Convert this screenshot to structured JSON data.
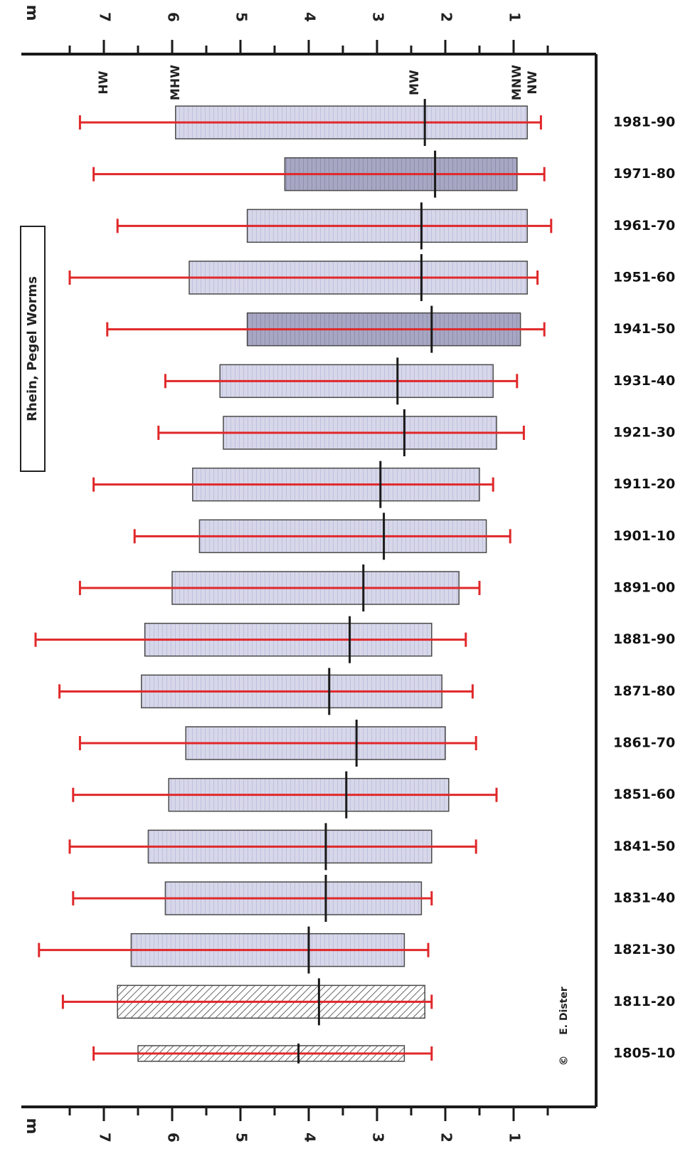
{
  "chart_data": {
    "type": "bar",
    "title": "Rhein, Pegel Worms",
    "unit": "m",
    "orientation": "horizontal range bars (rotated figure)",
    "axis": {
      "min": 0.5,
      "max": 7.7,
      "ticks": [
        1,
        2,
        3,
        4,
        5,
        6,
        7
      ],
      "label": "m"
    },
    "reference_lines": [
      {
        "label": "HW",
        "value": 7.0
      },
      {
        "label": "MHW",
        "value": 5.95
      },
      {
        "label": "MW",
        "value": 2.45
      },
      {
        "label": "MNW",
        "value": 0.95
      },
      {
        "label": "NW",
        "value": 0.72
      }
    ],
    "legend": [],
    "credit": "E. Dister",
    "copyright_symbol": "©",
    "series_fields": [
      "box_high",
      "box_low",
      "mean",
      "whisker_high",
      "whisker_low"
    ],
    "categories": [
      "1981-90",
      "1971-80",
      "1961-70",
      "1951-60",
      "1941-50",
      "1931-40",
      "1921-30",
      "1911-20",
      "1901-10",
      "1891-00",
      "1881-90",
      "1871-80",
      "1861-70",
      "1851-60",
      "1841-50",
      "1831-40",
      "1821-30",
      "1811-20",
      "1805-10"
    ],
    "periods": [
      {
        "label": "1981-90",
        "box_high": 5.95,
        "box_low": 0.8,
        "mean": 2.3,
        "whisker_high": 7.35,
        "whisker_low": 0.6
      },
      {
        "label": "1971-80",
        "box_high": 4.35,
        "box_low": 0.95,
        "mean": 2.15,
        "whisker_high": 7.15,
        "whisker_low": 0.55
      },
      {
        "label": "1961-70",
        "box_high": 4.9,
        "box_low": 0.8,
        "mean": 2.35,
        "whisker_high": 6.8,
        "whisker_low": 0.45
      },
      {
        "label": "1951-60",
        "box_high": 5.75,
        "box_low": 0.8,
        "mean": 2.35,
        "whisker_high": 7.5,
        "whisker_low": 0.65
      },
      {
        "label": "1941-50",
        "box_high": 4.9,
        "box_low": 0.9,
        "mean": 2.2,
        "whisker_high": 6.95,
        "whisker_low": 0.55
      },
      {
        "label": "1931-40",
        "box_high": 5.3,
        "box_low": 1.3,
        "mean": 2.7,
        "whisker_high": 6.1,
        "whisker_low": 0.95
      },
      {
        "label": "1921-30",
        "box_high": 5.25,
        "box_low": 1.25,
        "mean": 2.6,
        "whisker_high": 6.2,
        "whisker_low": 0.85
      },
      {
        "label": "1911-20",
        "box_high": 5.7,
        "box_low": 1.5,
        "mean": 2.95,
        "whisker_high": 7.15,
        "whisker_low": 1.3
      },
      {
        "label": "1901-10",
        "box_high": 5.6,
        "box_low": 1.4,
        "mean": 2.9,
        "whisker_high": 6.55,
        "whisker_low": 1.05
      },
      {
        "label": "1891-00",
        "box_high": 6.0,
        "box_low": 1.8,
        "mean": 3.2,
        "whisker_high": 7.35,
        "whisker_low": 1.5
      },
      {
        "label": "1881-90",
        "box_high": 6.4,
        "box_low": 2.2,
        "mean": 3.4,
        "whisker_high": 8.0,
        "whisker_low": 1.7
      },
      {
        "label": "1871-80",
        "box_high": 6.45,
        "box_low": 2.05,
        "mean": 3.7,
        "whisker_high": 7.65,
        "whisker_low": 1.6
      },
      {
        "label": "1861-70",
        "box_high": 5.8,
        "box_low": 2.0,
        "mean": 3.3,
        "whisker_high": 7.35,
        "whisker_low": 1.55
      },
      {
        "label": "1851-60",
        "box_high": 6.05,
        "box_low": 1.95,
        "mean": 3.45,
        "whisker_high": 7.45,
        "whisker_low": 1.25
      },
      {
        "label": "1841-50",
        "box_high": 6.35,
        "box_low": 2.2,
        "mean": 3.75,
        "whisker_high": 7.5,
        "whisker_low": 1.55
      },
      {
        "label": "1831-40",
        "box_high": 6.1,
        "box_low": 2.35,
        "mean": 3.75,
        "whisker_high": 7.45,
        "whisker_low": 2.2
      },
      {
        "label": "1821-30",
        "box_high": 6.6,
        "box_low": 2.6,
        "mean": 4.0,
        "whisker_high": 7.95,
        "whisker_low": 2.25
      },
      {
        "label": "1811-20",
        "box_high": 6.8,
        "box_low": 2.3,
        "mean": 3.85,
        "whisker_high": 7.6,
        "whisker_low": 2.2
      },
      {
        "label": "1805-10",
        "box_high": 6.5,
        "box_low": 2.6,
        "mean": 4.15,
        "whisker_high": 7.15,
        "whisker_low": 2.2
      }
    ]
  },
  "colors": {
    "frame": "#1a1a1a",
    "box_light": "#cfcfe6",
    "box_dark": "#9a9ab8",
    "whisker": "#e0282a",
    "mean_line": "#1a1a1a",
    "box_edge": "#4a4a4a"
  }
}
